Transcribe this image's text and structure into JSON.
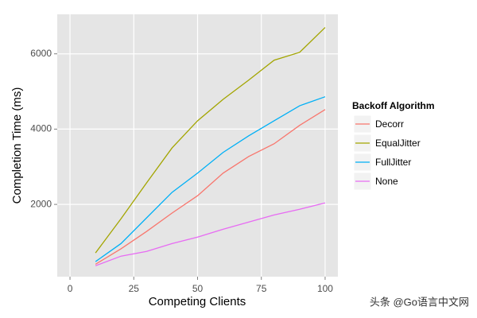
{
  "chart_data": {
    "type": "line",
    "x_label": "Competing Clients",
    "y_label": "Completion Time (ms)",
    "x": [
      10,
      20,
      30,
      40,
      50,
      60,
      70,
      80,
      90,
      100
    ],
    "series": [
      {
        "name": "Decorr",
        "color": "#f8766d",
        "values": [
          410,
          820,
          1280,
          1770,
          2230,
          2830,
          3270,
          3610,
          4100,
          4520
        ]
      },
      {
        "name": "EqualJitter",
        "color": "#a3a500",
        "values": [
          710,
          1620,
          2570,
          3500,
          4220,
          4790,
          5300,
          5830,
          6040,
          6700
        ]
      },
      {
        "name": "FullJitter",
        "color": "#00b0f6",
        "values": [
          480,
          960,
          1640,
          2320,
          2830,
          3380,
          3820,
          4220,
          4620,
          4860
        ]
      },
      {
        "name": "None",
        "color": "#e76bf3",
        "values": [
          370,
          625,
          750,
          960,
          1130,
          1340,
          1530,
          1720,
          1870,
          2040
        ]
      }
    ],
    "legend_title": "Backoff Algorithm",
    "legend_position": "right",
    "xlim": [
      -5,
      105
    ],
    "xticks": [
      0,
      25,
      50,
      75,
      100
    ],
    "ylim": [
      80,
      7050
    ],
    "yticks": [
      2000,
      4000,
      6000
    ],
    "grid": true
  },
  "watermark": "头条 @Go语言中文网"
}
